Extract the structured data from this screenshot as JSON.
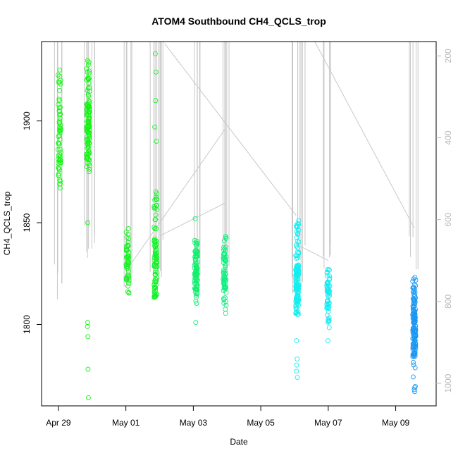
{
  "chart_data": {
    "type": "scatter",
    "title": "ATOM4 Southbound CH4_QCLS_trop",
    "xlabel": "Date",
    "ylabel": "CH4_QCLS_trop",
    "x_tick_labels": [
      "Apr 29",
      "May 01",
      "May 03",
      "May 05",
      "May 07",
      "May 09"
    ],
    "x_ticks_day": [
      0,
      2,
      4,
      6,
      8,
      10
    ],
    "xlim_day": [
      -0.5,
      11.2
    ],
    "y_ticks": [
      1800,
      1850,
      1900
    ],
    "ylim": [
      1760,
      1939
    ],
    "y2_ticks": [
      200,
      400,
      600,
      800,
      1000
    ],
    "y2lim": [
      1055,
      165
    ],
    "y2_label": "",
    "grid": false,
    "point_style": "open-circle",
    "profile_line_color": "#c8c8c8",
    "clusters": [
      {
        "day": 0.03,
        "y_min": 1866,
        "y_max": 1925,
        "n": 45,
        "color": "#11f511",
        "y_mid": 1892,
        "extra_y": [
          1867,
          1869,
          1871,
          1876,
          1881,
          1886,
          1895,
          1900,
          1903,
          1905,
          1910,
          1915,
          1919,
          1922,
          1925
        ]
      },
      {
        "day": 0.88,
        "y_min": 1875,
        "y_max": 1931,
        "n": 110,
        "color": "#11f511",
        "y_mid": 1893,
        "extra_y": [
          1850,
          1801,
          1799,
          1794,
          1778,
          1764
        ]
      },
      {
        "day": 2.05,
        "y_min": 1815,
        "y_max": 1848,
        "n": 55,
        "color": "#14f31f",
        "y_mid": 1830,
        "extra_y": []
      },
      {
        "day": 2.88,
        "y_min": 1813,
        "y_max": 1866,
        "n": 95,
        "color": "#14f22a",
        "y_mid": 1828,
        "extra_y": [
          1933,
          1924,
          1910,
          1897,
          1890
        ]
      },
      {
        "day": 4.08,
        "y_min": 1808,
        "y_max": 1842,
        "n": 90,
        "color": "#12f06e",
        "y_mid": 1826,
        "extra_y": [
          1852,
          1801
        ]
      },
      {
        "day": 4.93,
        "y_min": 1805,
        "y_max": 1844,
        "n": 70,
        "color": "#12ef80",
        "y_mid": 1827,
        "extra_y": []
      },
      {
        "day": 7.08,
        "y_min": 1805,
        "y_max": 1852,
        "n": 150,
        "color": "#14eef0",
        "y_mid": 1817,
        "extra_y": [
          1792,
          1783,
          1780,
          1777,
          1774
        ]
      },
      {
        "day": 8.0,
        "y_min": 1797,
        "y_max": 1828,
        "n": 55,
        "color": "#14eaf2",
        "y_mid": 1815,
        "extra_y": [
          1792
        ]
      },
      {
        "day": 10.55,
        "y_min": 1768,
        "y_max": 1826,
        "n": 140,
        "color": "#1a98f2",
        "y_mid": 1800,
        "extra_y": [
          1769,
          1768,
          1767
        ]
      }
    ],
    "profile_columns": [
      {
        "day": 0.03,
        "top": 165,
        "bottom": 820
      },
      {
        "day": 0.8,
        "top": 165,
        "bottom": 700
      },
      {
        "day": 0.95,
        "top": 165,
        "bottom": 740
      },
      {
        "day": 2.05,
        "top": 165,
        "bottom": 800
      },
      {
        "day": 2.85,
        "top": 165,
        "bottom": 760
      },
      {
        "day": 3.05,
        "top": 165,
        "bottom": 760
      },
      {
        "day": 4.08,
        "top": 165,
        "bottom": 790
      },
      {
        "day": 4.93,
        "top": 165,
        "bottom": 760
      },
      {
        "day": 7.05,
        "top": 165,
        "bottom": 790
      },
      {
        "day": 7.2,
        "top": 165,
        "bottom": 770
      },
      {
        "day": 8.0,
        "top": 165,
        "bottom": 720
      },
      {
        "day": 10.55,
        "top": 165,
        "bottom": 750
      }
    ],
    "profile_transits": [
      {
        "from": [
          2.05,
          720
        ],
        "to": [
          4.93,
          380
        ]
      },
      {
        "from": [
          3.0,
          640
        ],
        "to": [
          4.93,
          560
        ]
      },
      {
        "from": [
          3.15,
          170
        ],
        "to": [
          7.05,
          590
        ]
      },
      {
        "from": [
          7.05,
          660
        ],
        "to": [
          8.0,
          700
        ]
      },
      {
        "from": [
          7.6,
          165
        ],
        "to": [
          10.55,
          620
        ]
      }
    ]
  }
}
